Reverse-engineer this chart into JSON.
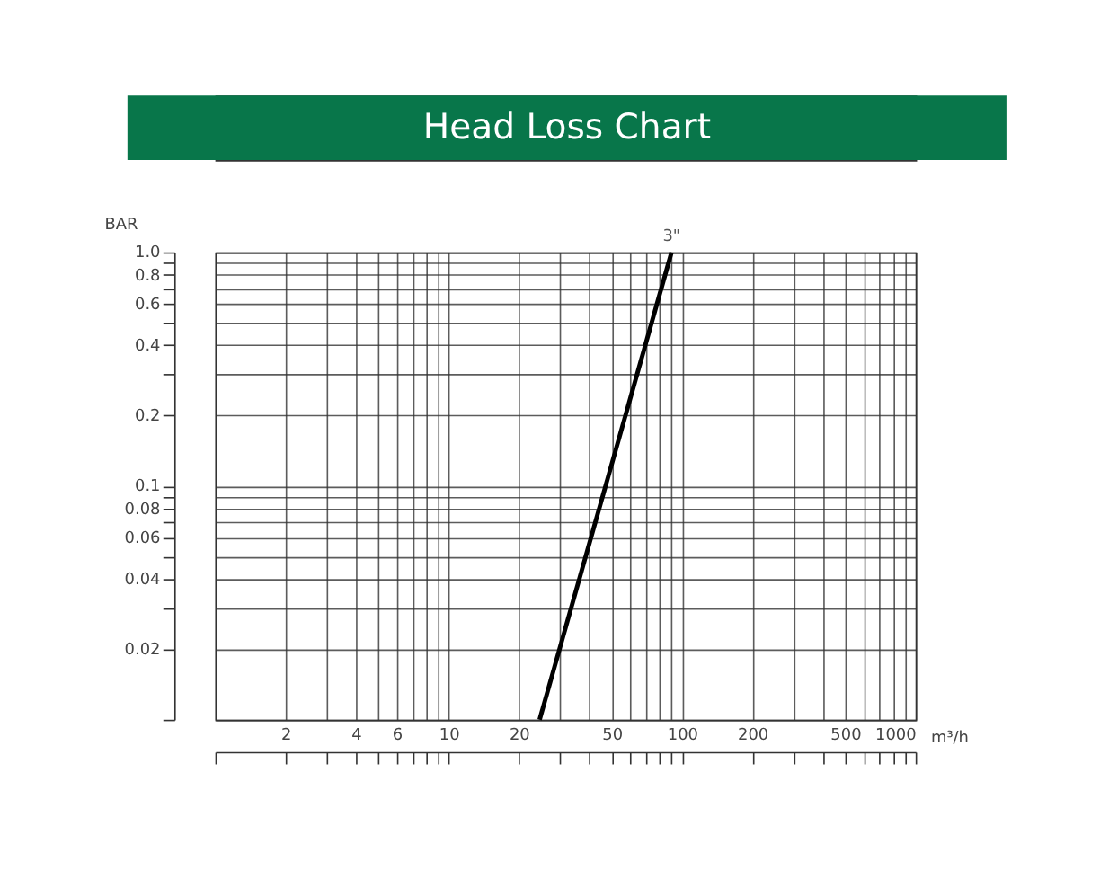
{
  "chart_data": {
    "type": "line",
    "title": "Head Loss Chart",
    "xlabel": "m³/h",
    "ylabel": "BAR",
    "log": "xy",
    "grid": true,
    "marker": "none",
    "line_style": "solid",
    "xlim": [
      1,
      1000
    ],
    "ylim": [
      0.01,
      1
    ],
    "xticks": [
      {
        "value": 1,
        "label": null
      },
      2,
      {
        "value": 3,
        "label": null
      },
      4,
      {
        "value": 5,
        "label": null
      },
      6,
      {
        "value": 7,
        "label": null
      },
      {
        "value": 8,
        "label": null
      },
      {
        "value": 9,
        "label": null
      },
      10,
      20,
      {
        "value": 30,
        "label": null
      },
      {
        "value": 40,
        "label": null
      },
      50,
      {
        "value": 60,
        "label": null
      },
      {
        "value": 70,
        "label": null
      },
      {
        "value": 80,
        "label": null
      },
      {
        "value": 90,
        "label": null
      },
      100,
      200,
      {
        "value": 300,
        "label": null
      },
      {
        "value": 400,
        "label": null
      },
      500,
      {
        "value": 600,
        "label": null
      },
      {
        "value": 700,
        "label": null
      },
      {
        "value": 800,
        "label": null
      },
      {
        "value": 900,
        "label": null
      },
      1000
    ],
    "yticks": [
      {
        "value": 0.01,
        "label": null
      },
      0.02,
      {
        "value": 0.03,
        "label": null
      },
      0.04,
      {
        "value": 0.05,
        "label": null
      },
      0.06,
      {
        "value": 0.07,
        "label": null
      },
      0.08,
      {
        "value": 0.09,
        "label": null
      },
      0.1,
      0.2,
      {
        "value": 0.3,
        "label": null
      },
      0.4,
      {
        "value": 0.5,
        "label": null
      },
      0.6,
      {
        "value": 0.7,
        "label": null
      },
      0.8,
      {
        "value": 0.9,
        "label": null
      },
      {
        "value": 1,
        "label": "1.0"
      }
    ],
    "series": [
      {
        "name": "3\"",
        "color": "#000000",
        "x": [
          24.5,
          90
        ],
        "values": [
          0.01,
          1
        ]
      }
    ]
  }
}
